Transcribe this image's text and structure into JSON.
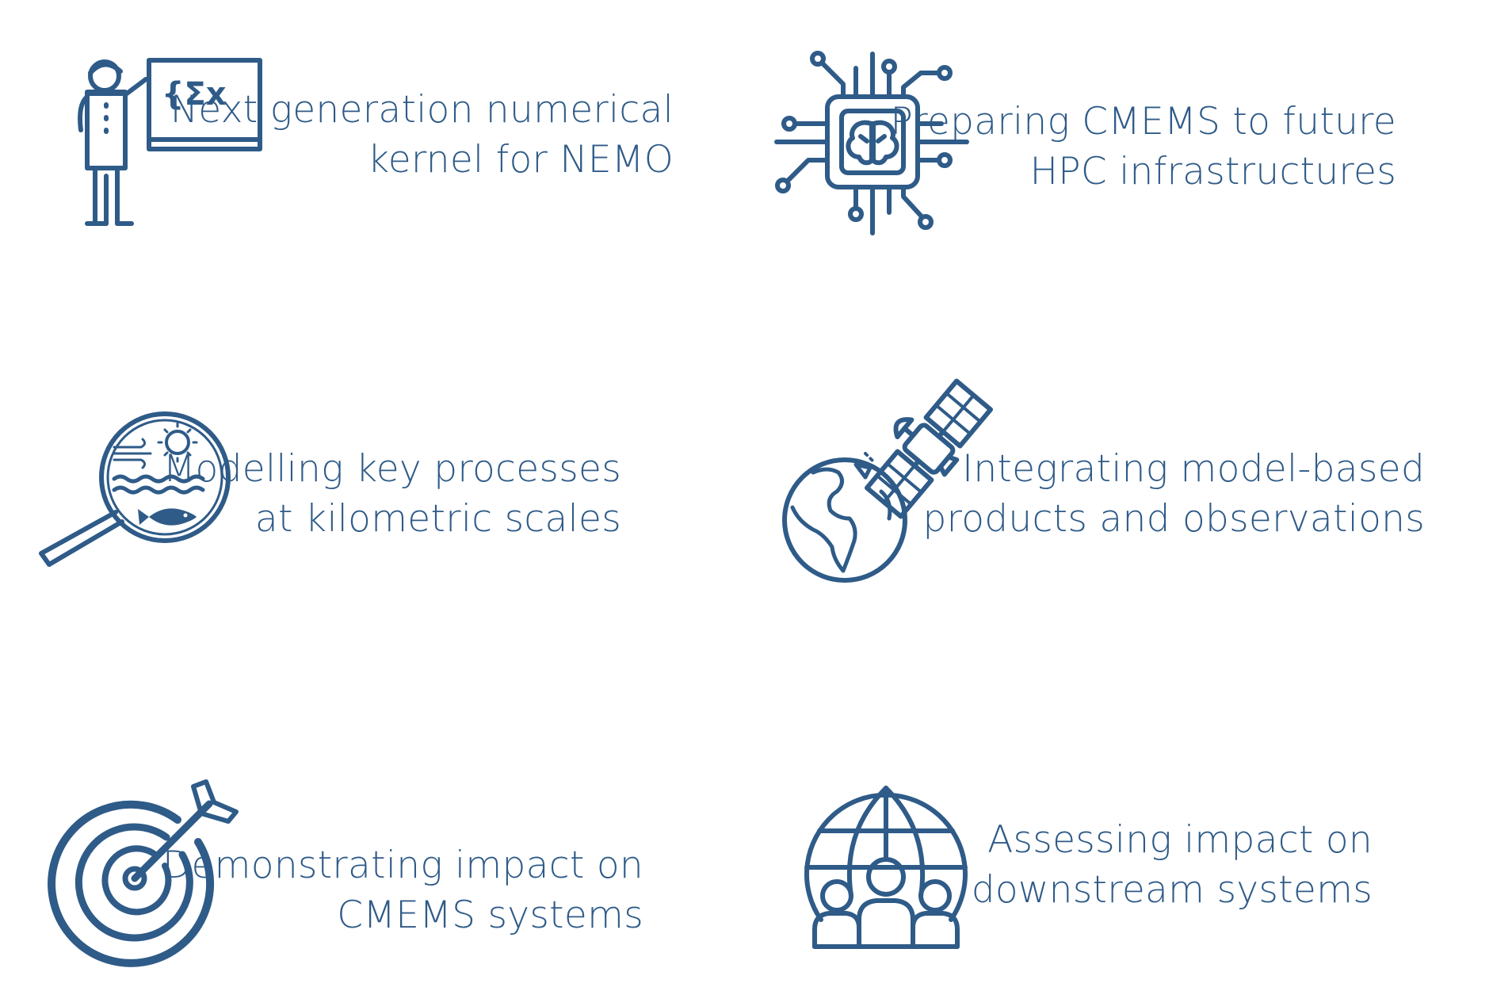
{
  "colors": {
    "accent": "#2f5b88",
    "background": "#ffffff"
  },
  "items": [
    {
      "icon": "teacher-blackboard-icon",
      "icon_text": "{Σx",
      "line1": "Next generation numerical",
      "line2": "kernel for NEMO"
    },
    {
      "icon": "ai-chip-brain-icon",
      "line1": "Preparing CMEMS to future",
      "line2": "HPC infrastructures"
    },
    {
      "icon": "magnifier-ocean-fish-icon",
      "line1": "Modelling key processes",
      "line2": "at kilometric scales"
    },
    {
      "icon": "globe-satellite-icon",
      "line1": "Integrating model-based",
      "line2": "products and observations"
    },
    {
      "icon": "target-arrow-icon",
      "line1": "Demonstrating impact on",
      "line2": "CMEMS systems"
    },
    {
      "icon": "global-users-icon",
      "line1": "Assessing impact on",
      "line2": "downstream systems"
    }
  ]
}
